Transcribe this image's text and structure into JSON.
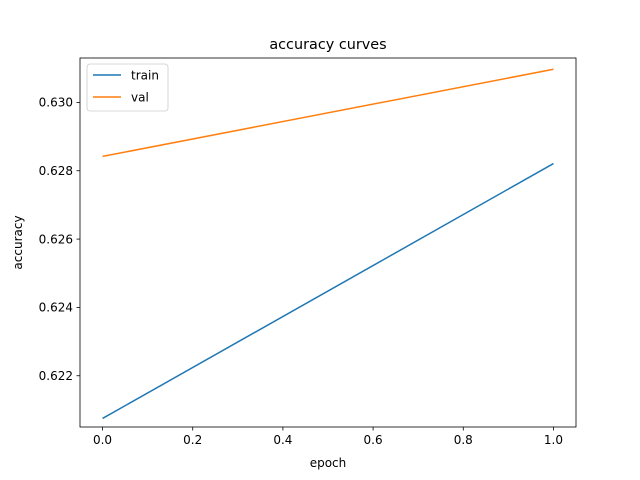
{
  "chart_data": {
    "type": "line",
    "title": "accuracy curves",
    "xlabel": "epoch",
    "ylabel": "accuracy",
    "x": [
      0.0,
      1.0
    ],
    "xlim": [
      -0.05,
      1.05
    ],
    "ylim": [
      0.6205,
      0.6313
    ],
    "xticks": [
      "0.0",
      "0.2",
      "0.4",
      "0.6",
      "0.8",
      "1.0"
    ],
    "yticks": [
      "0.622",
      "0.624",
      "0.626",
      "0.628",
      "0.630"
    ],
    "grid": false,
    "legend_position": "upper-left",
    "series": [
      {
        "name": "train",
        "color": "#1f77b4",
        "values": [
          0.62075,
          0.62821
        ]
      },
      {
        "name": "val",
        "color": "#ff7f0e",
        "values": [
          0.62842,
          0.63097
        ]
      }
    ]
  }
}
